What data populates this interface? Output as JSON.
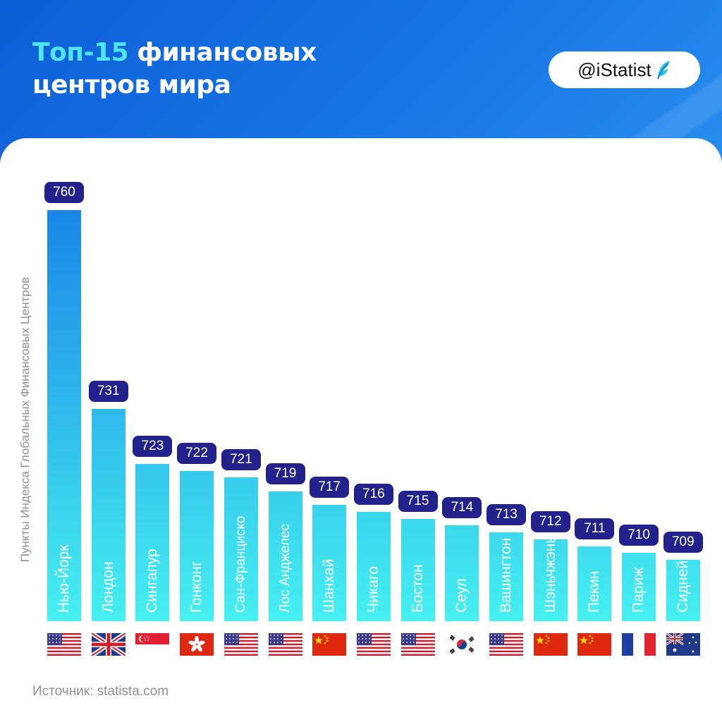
{
  "header": {
    "title_accent": "Топ-15",
    "title_rest_1": " финансовых",
    "title_line_2": "центров мира",
    "brand": "@iStatist",
    "brand_icon": "feather-logo-icon"
  },
  "footer": {
    "source": "Источник: statista.com"
  },
  "colors": {
    "bar_top": "#1a86e8",
    "bar_bottom": "#46f0f0",
    "value_badge": "#23228c",
    "accent": "#4ee6ff"
  },
  "chart_data": {
    "type": "bar",
    "ylabel": "Пункты Индекса Глобальных Финансовых Центров",
    "categories": [
      "Нью-Йорк",
      "Лондон",
      "Сингапур",
      "Гонконг",
      "Сан-Франциско",
      "Лос Анджелес",
      "Шанхай",
      "Чикаго",
      "Бостон",
      "Сеул",
      "Вашингтон",
      "Шэньчжэнь",
      "Пекин",
      "Париж",
      "Сидней"
    ],
    "values": [
      760,
      731,
      723,
      722,
      721,
      719,
      717,
      716,
      715,
      714,
      713,
      712,
      711,
      710,
      709
    ],
    "flags": [
      "us",
      "uk",
      "sg",
      "hk",
      "us",
      "us",
      "cn",
      "us",
      "us",
      "kr",
      "us",
      "cn",
      "cn",
      "fr",
      "au"
    ],
    "grid": false,
    "legend": "none"
  }
}
